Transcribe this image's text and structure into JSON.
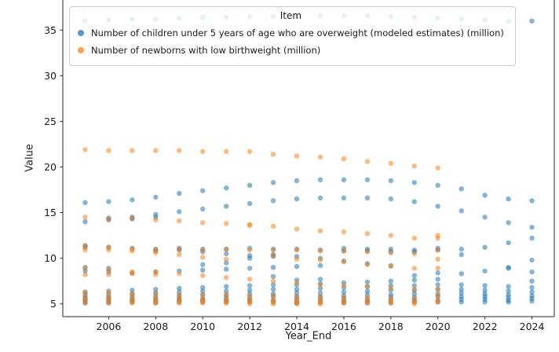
{
  "figure": {
    "background": "#ffffff",
    "text_color": "#1a1a1a"
  },
  "chart_data": {
    "type": "scatter",
    "title": "",
    "xlabel": "Year_End",
    "ylabel": "Value",
    "grid": false,
    "legend": {
      "title": "Item",
      "position": "upper-left",
      "entries": [
        "Number of children under 5 years of age who are overweight (modeled estimates) (million)",
        "Number of newborns with low birthweight (million)"
      ]
    },
    "xticks": [
      2006,
      2008,
      2010,
      2012,
      2014,
      2016,
      2018,
      2020,
      2022,
      2024
    ],
    "yticks": [
      5,
      10,
      15,
      20,
      25,
      30,
      35
    ],
    "xlim": [
      2004.05,
      2024.95
    ],
    "ylim": [
      3.6,
      38.3
    ],
    "marker": {
      "radius": 3.2,
      "alpha": 0.55
    },
    "series": [
      {
        "name": "Number of children under 5 years of age who are overweight (modeled estimates) (million)",
        "color": "#1f77b4",
        "data": [
          {
            "year": 2005,
            "values": [
              36.0,
              16.1,
              14.0,
              11.4,
              11.2,
              9.0,
              8.6,
              6.3,
              6.0,
              5.7,
              5.5,
              5.3,
              5.1
            ]
          },
          {
            "year": 2006,
            "values": [
              36.1,
              16.2,
              14.4,
              14.2,
              11.2,
              8.9,
              8.5,
              6.4,
              6.0,
              5.7,
              5.5,
              5.3,
              5.1
            ]
          },
          {
            "year": 2007,
            "values": [
              36.2,
              16.4,
              14.5,
              14.3,
              11.1,
              8.4,
              6.5,
              6.1,
              5.8,
              5.5,
              5.3,
              5.2
            ]
          },
          {
            "year": 2008,
            "values": [
              36.2,
              16.7,
              14.8,
              14.5,
              11.0,
              10.8,
              8.5,
              6.6,
              6.2,
              5.8,
              5.5,
              5.3,
              5.1
            ]
          },
          {
            "year": 2009,
            "values": [
              36.3,
              17.1,
              15.1,
              11.1,
              10.9,
              8.6,
              6.7,
              6.3,
              5.9,
              5.6,
              5.4,
              5.2
            ]
          },
          {
            "year": 2010,
            "values": [
              36.4,
              17.4,
              15.4,
              11.0,
              10.7,
              9.3,
              8.7,
              6.8,
              6.4,
              6.0,
              5.6,
              5.4,
              5.2
            ]
          },
          {
            "year": 2011,
            "values": [
              36.4,
              17.7,
              15.7,
              11.0,
              10.5,
              9.5,
              8.8,
              6.9,
              6.4,
              6.0,
              5.7,
              5.4,
              5.2
            ]
          },
          {
            "year": 2012,
            "values": [
              36.5,
              18.0,
              16.0,
              11.1,
              10.3,
              10.0,
              8.9,
              7.0,
              6.5,
              6.1,
              5.7,
              5.4,
              5.2
            ]
          },
          {
            "year": 2013,
            "values": [
              36.5,
              18.3,
              16.3,
              11.0,
              10.4,
              10.2,
              9.0,
              8.0,
              7.1,
              6.6,
              6.1,
              5.8,
              5.4,
              5.2
            ]
          },
          {
            "year": 2014,
            "values": [
              36.5,
              18.5,
              16.5,
              11.0,
              10.2,
              9.1,
              7.6,
              7.1,
              6.6,
              6.2,
              5.8,
              5.5,
              5.2,
              5.1
            ]
          },
          {
            "year": 2015,
            "values": [
              36.6,
              18.6,
              16.6,
              10.9,
              10.0,
              9.2,
              7.7,
              7.2,
              6.7,
              6.2,
              5.8,
              5.5,
              5.2
            ]
          },
          {
            "year": 2016,
            "values": [
              36.6,
              18.6,
              16.6,
              11.1,
              10.8,
              9.7,
              7.3,
              6.8,
              6.3,
              5.9,
              5.6,
              5.3,
              5.1
            ]
          },
          {
            "year": 2017,
            "values": [
              36.6,
              18.6,
              16.6,
              11.0,
              10.8,
              9.4,
              7.4,
              6.9,
              6.4,
              6.0,
              5.6,
              5.3,
              5.1
            ]
          },
          {
            "year": 2018,
            "values": [
              36.5,
              18.5,
              16.5,
              11.0,
              10.7,
              9.2,
              7.5,
              7.0,
              6.5,
              6.0,
              5.7,
              5.4,
              5.1
            ]
          },
          {
            "year": 2019,
            "values": [
              36.4,
              18.3,
              16.2,
              10.9,
              10.7,
              8.1,
              7.6,
              7.0,
              6.5,
              6.1,
              5.7,
              5.4,
              5.2
            ]
          },
          {
            "year": 2020,
            "values": [
              36.3,
              18.0,
              15.7,
              11.1,
              10.9,
              8.4,
              7.7,
              7.1,
              6.6,
              6.1,
              5.8,
              5.4,
              5.2
            ]
          },
          {
            "year": 2021,
            "values": [
              36.2,
              17.6,
              15.2,
              11.0,
              10.4,
              8.3,
              7.1,
              6.6,
              6.2,
              5.8,
              5.5,
              5.2
            ]
          },
          {
            "year": 2022,
            "values": [
              36.1,
              16.9,
              14.5,
              11.2,
              8.6,
              7.0,
              6.5,
              6.1,
              5.8,
              5.5,
              5.2
            ]
          },
          {
            "year": 2023,
            "values": [
              36.0,
              16.5,
              13.9,
              11.7,
              9.0,
              8.9,
              6.9,
              6.4,
              6.0,
              5.7,
              5.4,
              5.2
            ]
          },
          {
            "year": 2024,
            "values": [
              36.0,
              16.3,
              13.4,
              12.2,
              9.8,
              8.5,
              7.5,
              6.8,
              6.3,
              5.9,
              5.6,
              5.3
            ]
          }
        ]
      },
      {
        "name": "Number of newborns with low birthweight (million)",
        "color": "#ff7f0e",
        "data": [
          {
            "year": 2005,
            "values": [
              21.9,
              14.5,
              11.3,
              10.9,
              8.9,
              8.2,
              6.2,
              5.7,
              5.4,
              5.1
            ]
          },
          {
            "year": 2006,
            "values": [
              21.8,
              14.3,
              11.2,
              10.9,
              8.7,
              8.2,
              6.2,
              5.7,
              5.4,
              5.1
            ]
          },
          {
            "year": 2007,
            "values": [
              21.8,
              14.4,
              11.0,
              10.8,
              8.5,
              8.3,
              6.1,
              5.7,
              5.3,
              5.1
            ]
          },
          {
            "year": 2008,
            "values": [
              21.8,
              14.2,
              10.9,
              10.6,
              8.5,
              8.2,
              6.1,
              5.6,
              5.3,
              5.1
            ]
          },
          {
            "year": 2009,
            "values": [
              21.8,
              14.1,
              11.0,
              10.4,
              8.3,
              6.0,
              5.6,
              5.3,
              5.1
            ]
          },
          {
            "year": 2010,
            "values": [
              21.7,
              13.9,
              10.9,
              10.1,
              8.1,
              6.0,
              5.5,
              5.3,
              5.1
            ]
          },
          {
            "year": 2011,
            "values": [
              21.7,
              13.8,
              11.0,
              9.9,
              7.9,
              6.0,
              5.5,
              5.3,
              5.1
            ]
          },
          {
            "year": 2012,
            "values": [
              21.7,
              13.7,
              13.6,
              10.9,
              7.7,
              5.9,
              5.5,
              5.2,
              5.0
            ]
          },
          {
            "year": 2013,
            "values": [
              21.4,
              13.5,
              10.9,
              10.3,
              7.5,
              5.9,
              5.4,
              5.2,
              5.0
            ]
          },
          {
            "year": 2014,
            "values": [
              21.2,
              13.2,
              10.9,
              9.9,
              7.3,
              5.8,
              5.4,
              5.2,
              5.0
            ]
          },
          {
            "year": 2015,
            "values": [
              21.1,
              13.0,
              10.8,
              9.8,
              7.1,
              5.8,
              5.4,
              5.1,
              5.0
            ]
          },
          {
            "year": 2016,
            "values": [
              20.9,
              12.9,
              10.8,
              9.6,
              7.0,
              5.7,
              5.3,
              5.1
            ]
          },
          {
            "year": 2017,
            "values": [
              20.6,
              12.7,
              10.7,
              9.3,
              6.9,
              5.7,
              5.3,
              5.1
            ]
          },
          {
            "year": 2018,
            "values": [
              20.4,
              12.5,
              10.6,
              9.1,
              6.7,
              5.6,
              5.3,
              5.1
            ]
          },
          {
            "year": 2019,
            "values": [
              20.1,
              12.2,
              10.5,
              8.9,
              6.6,
              5.6,
              5.2,
              5.0
            ]
          },
          {
            "year": 2020,
            "values": [
              19.9,
              12.5,
              12.2,
              10.9,
              9.9,
              8.9,
              6.6,
              5.9,
              5.4,
              5.2
            ]
          }
        ]
      }
    ]
  }
}
